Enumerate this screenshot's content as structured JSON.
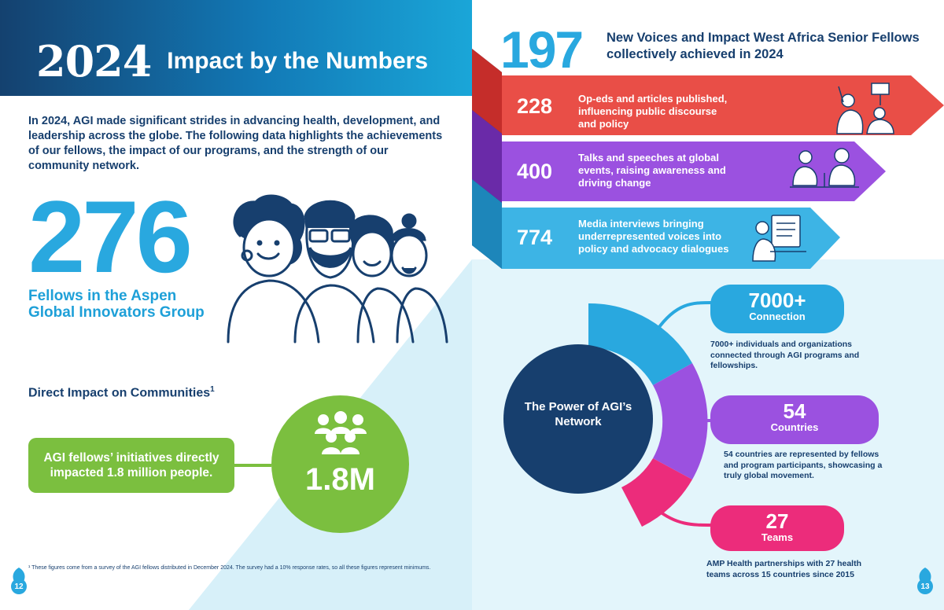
{
  "header": {
    "year": "2024",
    "title": "Impact by the Numbers"
  },
  "intro": "In 2024, AGI made significant strides in advancing health, development, and leadership across the globe. The following data highlights the achievements of our fellows, the impact of our programs, and the strength of our community network.",
  "fellows": {
    "value": "276",
    "label": "Fellows in the Aspen Global Innovators Group"
  },
  "direct_impact": {
    "title": "Direct Impact on Communities",
    "footnote_mark": "1",
    "box_text": "AGI fellows’ initiatives directly impacted 1.8 million people.",
    "value": "1.8M"
  },
  "footnote": "¹ These figures come from a survey of the AGI fellows distributed in December 2024. The survey had a 10% response rates, so all these figures represent minimums.",
  "pages": {
    "left": "12",
    "right": "13"
  },
  "voices": {
    "value": "197",
    "label": "New Voices and Impact West Africa Senior Fellows collectively achieved in 2024",
    "items": [
      {
        "value": "228",
        "text": "Op-eds and articles published, influencing public discourse and policy",
        "color": "#e94e47"
      },
      {
        "value": "400",
        "text": "Talks and speeches at global events, raising awareness and driving change",
        "color": "#9b51e0"
      },
      {
        "value": "774",
        "text": "Media interviews bringing underrepresented voices into policy and advocacy dialogues",
        "color": "#3db4e5"
      }
    ]
  },
  "network": {
    "center": "The Power of AGI’s Network",
    "items": [
      {
        "value": "7000+",
        "label": "Connection",
        "desc": "7000+ individuals and organizations connected through AGI programs and fellowships.",
        "color": "#29a8df"
      },
      {
        "value": "54",
        "label": "Countries",
        "desc": "54 countries are represented by fellows and program participants, showcasing a truly global movement.",
        "color": "#9b51e0"
      },
      {
        "value": "27",
        "label": "Teams",
        "desc": "AMP Health partnerships with 27 health teams across 15 countries since 2015",
        "color": "#ec2c7b"
      }
    ]
  },
  "colors": {
    "navy": "#173f6e",
    "blue": "#29a8df",
    "green": "#7bbf3f",
    "red": "#e94e47",
    "purple": "#9b51e0",
    "pink": "#ec2c7b"
  }
}
